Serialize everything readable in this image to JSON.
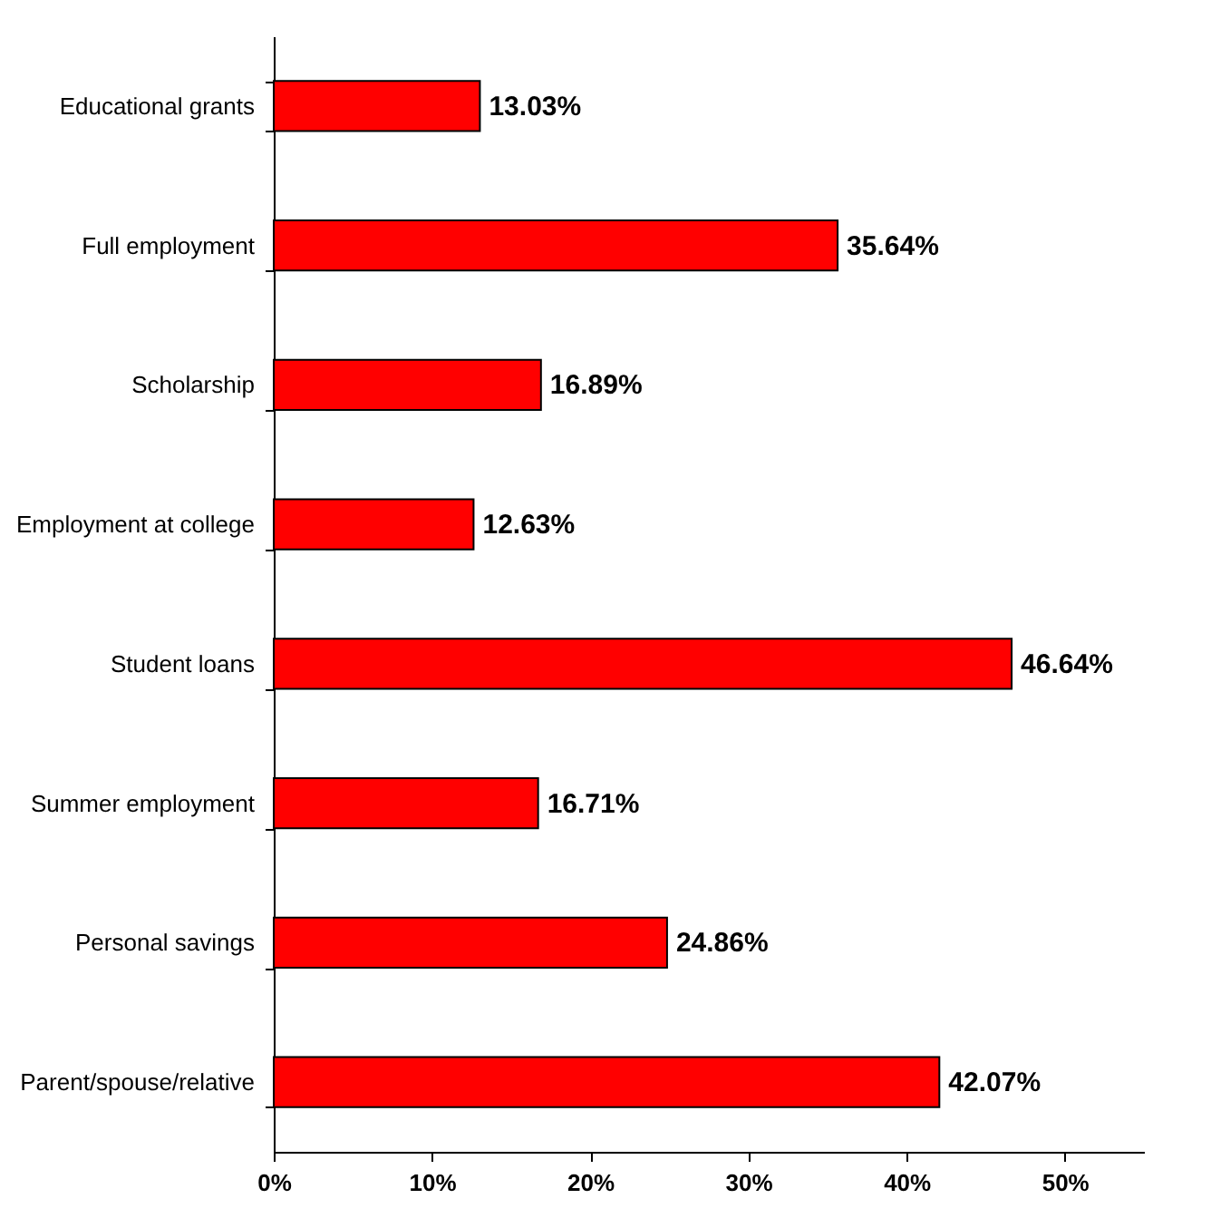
{
  "chart_data": {
    "type": "bar",
    "orientation": "horizontal",
    "categories": [
      "Educational grants",
      "Full employment",
      "Scholarship",
      "Employment at college",
      "Student loans",
      "Summer employment",
      "Personal savings",
      "Parent/spouse/relative"
    ],
    "values": [
      13.03,
      35.64,
      16.89,
      12.63,
      46.64,
      16.71,
      24.86,
      42.07
    ],
    "value_labels": [
      "13.03%",
      "35.64%",
      "16.89%",
      "12.63%",
      "46.64%",
      "16.71%",
      "24.86%",
      "42.07%"
    ],
    "color": "#ff0000",
    "xlim": [
      0,
      55
    ],
    "xticks": [
      {
        "value": 0,
        "label": "0%"
      },
      {
        "value": 10,
        "label": "10%"
      },
      {
        "value": 20,
        "label": "20%"
      },
      {
        "value": 30,
        "label": "30%"
      },
      {
        "value": 40,
        "label": "40%"
      },
      {
        "value": 50,
        "label": "50%"
      }
    ],
    "grid": false
  }
}
